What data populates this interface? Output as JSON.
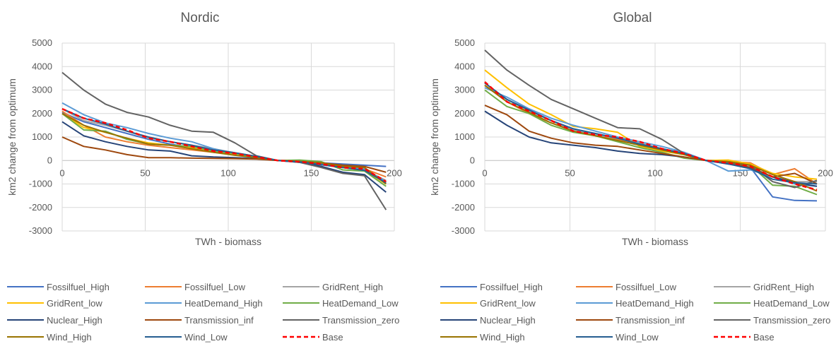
{
  "chart_data": [
    {
      "type": "line",
      "title": "Nordic",
      "xlabel": "TWh - biomass",
      "ylabel": "km2 change from optimum",
      "xlim": [
        0,
        200
      ],
      "ylim": [
        -3000,
        5000
      ],
      "xticks": [
        "0",
        "50",
        "100",
        "150",
        "200"
      ],
      "yticks": [
        "5000",
        "4000",
        "3000",
        "2000",
        "1000",
        "0",
        "-1000",
        "-2000",
        "-3000"
      ],
      "grid": true,
      "legend_position": "bottom",
      "x": [
        0,
        13,
        26,
        39,
        52,
        65,
        78,
        91,
        104,
        117,
        130,
        143,
        156,
        169,
        182,
        195
      ],
      "series": [
        {
          "name": "Fossilfuel_High",
          "color": "#4472C4",
          "dashed": false,
          "values": [
            2050,
            1650,
            1400,
            1150,
            900,
            700,
            550,
            400,
            280,
            150,
            0,
            -50,
            -100,
            -150,
            -200,
            -250
          ]
        },
        {
          "name": "Fossilfuel_Low",
          "color": "#ED7D31",
          "dashed": false,
          "values": [
            2100,
            1500,
            1000,
            800,
            650,
            550,
            450,
            350,
            250,
            120,
            0,
            -60,
            -150,
            -250,
            -350,
            -700
          ]
        },
        {
          "name": "GridRent_High",
          "color": "#A5A5A5",
          "dashed": false,
          "values": [
            2200,
            1700,
            1500,
            1250,
            950,
            800,
            650,
            500,
            330,
            180,
            0,
            -70,
            -180,
            -300,
            -400,
            -850
          ]
        },
        {
          "name": "GridRent_low",
          "color": "#FFC000",
          "dashed": false,
          "values": [
            2000,
            1400,
            1200,
            950,
            750,
            650,
            550,
            400,
            270,
            140,
            0,
            -60,
            -150,
            -300,
            -420,
            -1000
          ]
        },
        {
          "name": "HeatDemand_High",
          "color": "#5B9BD5",
          "dashed": false,
          "values": [
            2450,
            1950,
            1600,
            1400,
            1150,
            950,
            800,
            500,
            300,
            150,
            0,
            -50,
            -150,
            -280,
            -350,
            -900
          ]
        },
        {
          "name": "HeatDemand_Low",
          "color": "#70AD47",
          "dashed": false,
          "values": [
            2000,
            1300,
            1250,
            900,
            700,
            650,
            600,
            400,
            300,
            150,
            0,
            20,
            -50,
            -400,
            -450,
            -1100
          ]
        },
        {
          "name": "Nuclear_High",
          "color": "#264478",
          "dashed": false,
          "values": [
            1650,
            1050,
            800,
            600,
            450,
            400,
            200,
            150,
            120,
            80,
            0,
            -80,
            -250,
            -500,
            -600,
            -1350
          ]
        },
        {
          "name": "Transmission_inf",
          "color": "#9E480E",
          "dashed": false,
          "values": [
            1000,
            600,
            450,
            250,
            120,
            120,
            100,
            90,
            80,
            60,
            0,
            -40,
            -100,
            -200,
            -250,
            -500
          ]
        },
        {
          "name": "Transmission_zero",
          "color": "#636363",
          "dashed": false,
          "values": [
            3750,
            3000,
            2400,
            2050,
            1850,
            1500,
            1250,
            1200,
            750,
            200,
            0,
            -80,
            -300,
            -550,
            -650,
            -2100
          ]
        },
        {
          "name": "Wind_High",
          "color": "#997300",
          "dashed": false,
          "values": [
            2000,
            1500,
            1200,
            950,
            700,
            650,
            500,
            350,
            220,
            120,
            0,
            -40,
            -100,
            -250,
            -300,
            -1000
          ]
        },
        {
          "name": "Wind_Low",
          "color": "#255E91",
          "dashed": false,
          "values": [
            2200,
            1800,
            1550,
            1250,
            1000,
            800,
            650,
            450,
            330,
            180,
            0,
            -60,
            -180,
            -300,
            -420,
            -950
          ]
        },
        {
          "name": "Base",
          "color": "#FF0000",
          "dashed": true,
          "values": [
            2200,
            1800,
            1600,
            1300,
            950,
            800,
            600,
            400,
            300,
            150,
            0,
            -50,
            -150,
            -300,
            -350,
            -900
          ]
        }
      ]
    },
    {
      "type": "line",
      "title": "Global",
      "xlabel": "TWh - biomass",
      "ylabel": "km2 change from optimum",
      "xlim": [
        0,
        200
      ],
      "ylim": [
        -3000,
        5000
      ],
      "xticks": [
        "0",
        "50",
        "100",
        "150",
        "200"
      ],
      "yticks": [
        "5000",
        "4000",
        "3000",
        "2000",
        "1000",
        "0",
        "-1000",
        "-2000",
        "-3000"
      ],
      "grid": true,
      "legend_position": "bottom",
      "x": [
        0,
        13,
        26,
        39,
        52,
        65,
        78,
        91,
        104,
        117,
        130,
        143,
        156,
        169,
        182,
        195
      ],
      "series": [
        {
          "name": "Fossilfuel_High",
          "color": "#4472C4",
          "dashed": false,
          "values": [
            3300,
            2600,
            2100,
            1700,
            1350,
            1100,
            900,
            700,
            500,
            300,
            0,
            -150,
            -300,
            -1550,
            -1700,
            -1720
          ]
        },
        {
          "name": "Fossilfuel_Low",
          "color": "#ED7D31",
          "dashed": false,
          "values": [
            3200,
            2500,
            2000,
            1600,
            1300,
            1100,
            900,
            700,
            500,
            300,
            0,
            -50,
            -100,
            -600,
            -350,
            -1000
          ]
        },
        {
          "name": "GridRent_High",
          "color": "#A5A5A5",
          "dashed": false,
          "values": [
            3200,
            2600,
            2100,
            1700,
            1300,
            1100,
            950,
            750,
            500,
            300,
            0,
            -100,
            -250,
            -700,
            -900,
            -900
          ]
        },
        {
          "name": "GridRent_low",
          "color": "#FFC000",
          "dashed": false,
          "values": [
            3850,
            3100,
            2400,
            1950,
            1450,
            1350,
            1200,
            600,
            400,
            250,
            0,
            20,
            -150,
            -550,
            -700,
            -800
          ]
        },
        {
          "name": "HeatDemand_High",
          "color": "#5B9BD5",
          "dashed": false,
          "values": [
            3100,
            2700,
            2200,
            1800,
            1500,
            1250,
            1000,
            800,
            600,
            350,
            0,
            -450,
            -400,
            -700,
            -1000,
            -1100
          ]
        },
        {
          "name": "HeatDemand_Low",
          "color": "#70AD47",
          "dashed": false,
          "values": [
            3000,
            2300,
            2000,
            1500,
            1200,
            1050,
            800,
            550,
            350,
            100,
            0,
            -50,
            -200,
            -1050,
            -1100,
            -1450
          ]
        },
        {
          "name": "Nuclear_High",
          "color": "#264478",
          "dashed": false,
          "values": [
            2100,
            1500,
            1000,
            750,
            650,
            550,
            400,
            300,
            250,
            150,
            0,
            -100,
            -300,
            -700,
            -950,
            -1100
          ]
        },
        {
          "name": "Transmission_inf",
          "color": "#9E480E",
          "dashed": false,
          "values": [
            2350,
            1950,
            1250,
            950,
            750,
            650,
            600,
            450,
            300,
            150,
            0,
            -100,
            -300,
            -700,
            -550,
            -1000
          ]
        },
        {
          "name": "Transmission_zero",
          "color": "#636363",
          "dashed": false,
          "values": [
            4700,
            3850,
            3200,
            2600,
            2200,
            1800,
            1400,
            1350,
            900,
            300,
            0,
            -100,
            -200,
            -900,
            -1150,
            -850
          ]
        },
        {
          "name": "Wind_High",
          "color": "#997300",
          "dashed": false,
          "values": [
            3200,
            2500,
            2050,
            1600,
            1250,
            1050,
            850,
            650,
            450,
            250,
            0,
            -50,
            -200,
            -600,
            -900,
            -1300
          ]
        },
        {
          "name": "Wind_Low",
          "color": "#255E91",
          "dashed": false,
          "values": [
            3300,
            2600,
            2150,
            1700,
            1350,
            1150,
            950,
            700,
            500,
            300,
            0,
            -150,
            -350,
            -800,
            -950,
            -1000
          ]
        },
        {
          "name": "Base",
          "color": "#FF0000",
          "dashed": true,
          "values": [
            3350,
            2500,
            2100,
            1700,
            1250,
            1100,
            1000,
            800,
            500,
            300,
            0,
            -100,
            -250,
            -700,
            -1000,
            -1250
          ]
        }
      ]
    }
  ]
}
